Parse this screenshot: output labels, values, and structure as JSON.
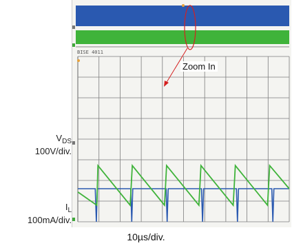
{
  "chart_data": {
    "type": "line",
    "title": "",
    "annotation": "Zoom In",
    "xlabel": "10µs/div.",
    "divisions": {
      "x": 10,
      "y": 8
    },
    "grid": true,
    "colors": {
      "vds": "#2a59b0",
      "il": "#3fb33a",
      "annotation": "#d42020",
      "grid": "#7d7d7d"
    },
    "series": [
      {
        "name": "V_DS",
        "unit_label": "100V/div.",
        "x": [
          0,
          3.3,
          3.5,
          3.7,
          10.0,
          10.2,
          10.4,
          16.7,
          16.9,
          17.1,
          23.4,
          23.6,
          23.8,
          30.0,
          30.2,
          30.4,
          36.7,
          36.9,
          37.1,
          40
        ],
        "y": [
          0.2,
          0.2,
          0,
          0.2,
          0.2,
          0,
          0.2,
          0.2,
          0,
          0.2,
          0.2,
          0,
          0.2,
          0.2,
          0,
          0.2,
          0.2,
          0,
          0.2,
          0.2
        ]
      },
      {
        "name": "I_L",
        "unit_label": "100mA/div.",
        "x": [
          0,
          3.6,
          3.8,
          9.9,
          10.3,
          16.4,
          16.8,
          22.9,
          23.3,
          29.4,
          29.8,
          35.9,
          36.3,
          40
        ],
        "y": [
          0.18,
          0.1,
          0.34,
          0.1,
          0.34,
          0.1,
          0.34,
          0.1,
          0.34,
          0.1,
          0.34,
          0.1,
          0.34,
          0.2
        ]
      }
    ],
    "vds_name_main": "V",
    "vds_name_sub": "DS",
    "il_name_main": "I",
    "il_name_sub": "L",
    "readout": "BISE 4011"
  }
}
